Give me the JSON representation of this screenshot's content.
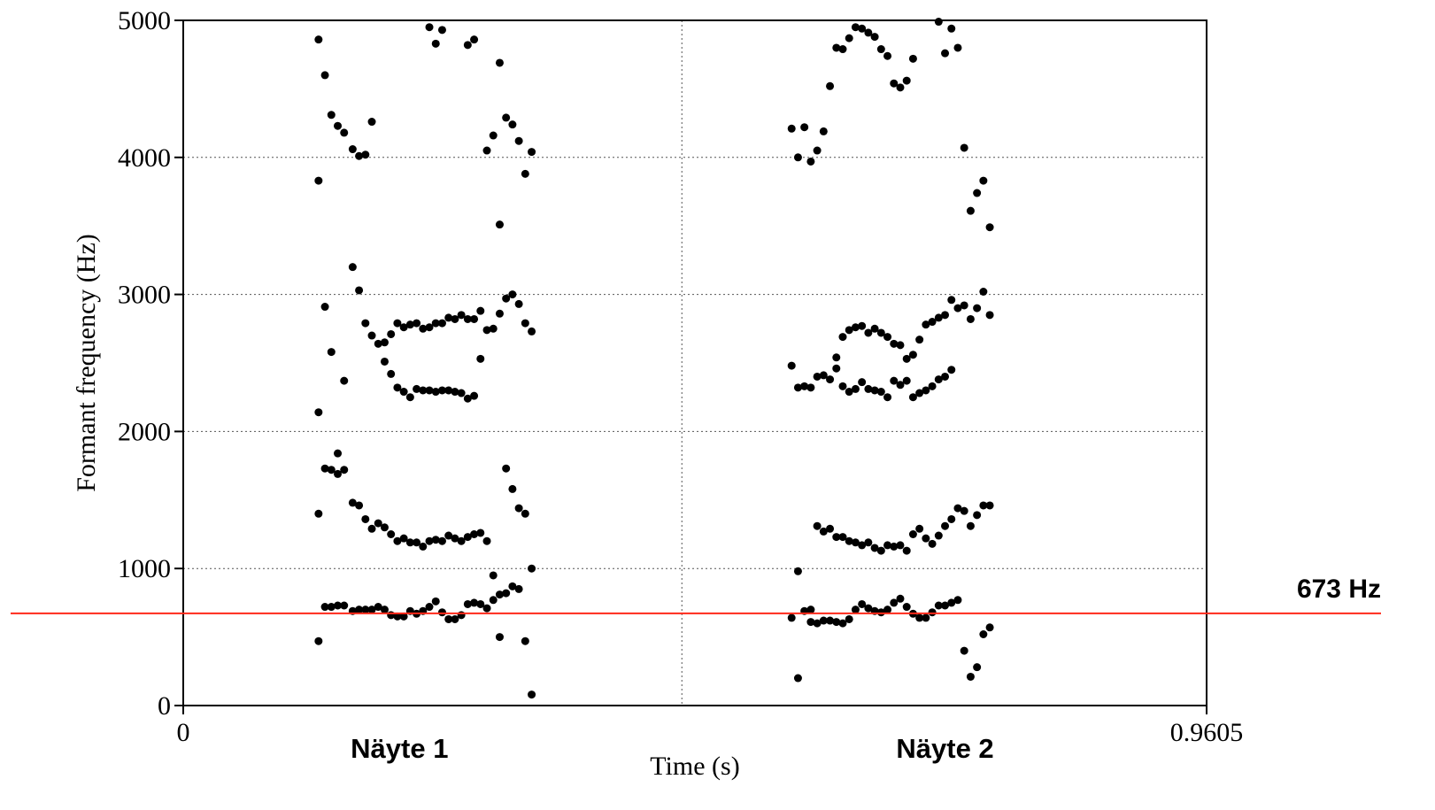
{
  "chart_data": {
    "type": "scatter",
    "xlabel": "Time (s)",
    "ylabel": "Formant frequency (Hz)",
    "xlim": [
      0,
      0.9605
    ],
    "ylim": [
      0,
      5000
    ],
    "x_tick_labels": [
      "0",
      "0.9605"
    ],
    "y_ticks": [
      0,
      1000,
      2000,
      3000,
      4000,
      5000
    ],
    "y_tick_labels": [
      "0",
      "1000",
      "2000",
      "3000",
      "4000",
      "5000"
    ],
    "grid": "horizontal dotted at y ticks; vertical dotted at sample boundary",
    "divider_x": 0.468,
    "sample_labels": [
      {
        "text": "Näyte 1",
        "x": 0.203
      },
      {
        "text": "Näyte 2",
        "x": 0.715
      }
    ],
    "reference_line": {
      "value": 673,
      "label": "673 Hz",
      "color": "#ff2a1a"
    },
    "point_color": "#000000",
    "series": [
      {
        "values": [
          [
            0.127,
            470
          ],
          [
            0.127,
            1400
          ],
          [
            0.127,
            2140
          ],
          [
            0.127,
            3830
          ],
          [
            0.127,
            4860
          ],
          [
            0.133,
            720
          ],
          [
            0.133,
            1730
          ],
          [
            0.133,
            2910
          ],
          [
            0.133,
            4600
          ],
          [
            0.139,
            720
          ],
          [
            0.139,
            1720
          ],
          [
            0.139,
            2580
          ],
          [
            0.139,
            4310
          ],
          [
            0.145,
            730
          ],
          [
            0.145,
            1690
          ],
          [
            0.145,
            1840
          ],
          [
            0.145,
            4230
          ],
          [
            0.151,
            730
          ],
          [
            0.151,
            1720
          ],
          [
            0.151,
            2370
          ],
          [
            0.151,
            4180
          ],
          [
            0.159,
            690
          ],
          [
            0.159,
            1480
          ],
          [
            0.159,
            3200
          ],
          [
            0.159,
            4060
          ],
          [
            0.165,
            700
          ],
          [
            0.165,
            1460
          ],
          [
            0.165,
            3030
          ],
          [
            0.165,
            4010
          ],
          [
            0.171,
            700
          ],
          [
            0.171,
            1360
          ],
          [
            0.171,
            2790
          ],
          [
            0.171,
            4020
          ],
          [
            0.177,
            700
          ],
          [
            0.177,
            1290
          ],
          [
            0.177,
            2700
          ],
          [
            0.177,
            4260
          ],
          [
            0.183,
            720
          ],
          [
            0.183,
            1330
          ],
          [
            0.183,
            2640
          ],
          [
            0.189,
            700
          ],
          [
            0.189,
            1300
          ],
          [
            0.189,
            2650
          ],
          [
            0.189,
            2510
          ],
          [
            0.195,
            660
          ],
          [
            0.195,
            1250
          ],
          [
            0.195,
            2710
          ],
          [
            0.195,
            2420
          ],
          [
            0.201,
            650
          ],
          [
            0.201,
            1200
          ],
          [
            0.201,
            2790
          ],
          [
            0.201,
            2320
          ],
          [
            0.207,
            650
          ],
          [
            0.207,
            1220
          ],
          [
            0.207,
            2760
          ],
          [
            0.207,
            2290
          ],
          [
            0.213,
            690
          ],
          [
            0.213,
            1190
          ],
          [
            0.213,
            2780
          ],
          [
            0.213,
            2250
          ],
          [
            0.219,
            670
          ],
          [
            0.219,
            1190
          ],
          [
            0.219,
            2790
          ],
          [
            0.219,
            2310
          ],
          [
            0.225,
            690
          ],
          [
            0.225,
            1160
          ],
          [
            0.225,
            2750
          ],
          [
            0.225,
            2300
          ],
          [
            0.231,
            720
          ],
          [
            0.231,
            1200
          ],
          [
            0.231,
            2760
          ],
          [
            0.231,
            2300
          ],
          [
            0.231,
            4950
          ],
          [
            0.237,
            760
          ],
          [
            0.237,
            1210
          ],
          [
            0.237,
            2790
          ],
          [
            0.237,
            2290
          ],
          [
            0.237,
            4830
          ],
          [
            0.243,
            680
          ],
          [
            0.243,
            1200
          ],
          [
            0.243,
            2790
          ],
          [
            0.243,
            2300
          ],
          [
            0.243,
            4930
          ],
          [
            0.249,
            630
          ],
          [
            0.249,
            1240
          ],
          [
            0.249,
            2830
          ],
          [
            0.249,
            2300
          ],
          [
            0.255,
            630
          ],
          [
            0.255,
            1220
          ],
          [
            0.255,
            2820
          ],
          [
            0.255,
            2290
          ],
          [
            0.261,
            660
          ],
          [
            0.261,
            1200
          ],
          [
            0.261,
            2850
          ],
          [
            0.261,
            2280
          ],
          [
            0.267,
            740
          ],
          [
            0.267,
            1230
          ],
          [
            0.267,
            2820
          ],
          [
            0.267,
            2240
          ],
          [
            0.267,
            4820
          ],
          [
            0.273,
            750
          ],
          [
            0.273,
            1250
          ],
          [
            0.273,
            2820
          ],
          [
            0.273,
            2260
          ],
          [
            0.273,
            4860
          ],
          [
            0.279,
            740
          ],
          [
            0.279,
            1260
          ],
          [
            0.279,
            2880
          ],
          [
            0.279,
            2530
          ],
          [
            0.285,
            710
          ],
          [
            0.285,
            1200
          ],
          [
            0.285,
            2740
          ],
          [
            0.285,
            4050
          ],
          [
            0.291,
            770
          ],
          [
            0.291,
            950
          ],
          [
            0.291,
            2750
          ],
          [
            0.291,
            4160
          ],
          [
            0.297,
            500
          ],
          [
            0.297,
            810
          ],
          [
            0.297,
            2860
          ],
          [
            0.297,
            3510
          ],
          [
            0.297,
            4690
          ],
          [
            0.303,
            820
          ],
          [
            0.303,
            1730
          ],
          [
            0.303,
            2970
          ],
          [
            0.303,
            4290
          ],
          [
            0.309,
            870
          ],
          [
            0.309,
            1580
          ],
          [
            0.309,
            3000
          ],
          [
            0.309,
            4240
          ],
          [
            0.315,
            850
          ],
          [
            0.315,
            1440
          ],
          [
            0.315,
            2930
          ],
          [
            0.315,
            4120
          ],
          [
            0.321,
            470
          ],
          [
            0.321,
            1400
          ],
          [
            0.321,
            2790
          ],
          [
            0.321,
            3880
          ],
          [
            0.327,
            80
          ],
          [
            0.327,
            1000
          ],
          [
            0.327,
            2730
          ],
          [
            0.327,
            4040
          ],
          [
            0.571,
            640
          ],
          [
            0.571,
            2480
          ],
          [
            0.571,
            4210
          ],
          [
            0.577,
            200
          ],
          [
            0.577,
            980
          ],
          [
            0.577,
            2320
          ],
          [
            0.577,
            4000
          ],
          [
            0.583,
            690
          ],
          [
            0.583,
            2330
          ],
          [
            0.583,
            4220
          ],
          [
            0.589,
            700
          ],
          [
            0.589,
            610
          ],
          [
            0.589,
            2320
          ],
          [
            0.589,
            3970
          ],
          [
            0.595,
            600
          ],
          [
            0.595,
            1310
          ],
          [
            0.595,
            2400
          ],
          [
            0.595,
            4050
          ],
          [
            0.601,
            620
          ],
          [
            0.601,
            1270
          ],
          [
            0.601,
            2410
          ],
          [
            0.601,
            4190
          ],
          [
            0.607,
            620
          ],
          [
            0.607,
            1290
          ],
          [
            0.607,
            2380
          ],
          [
            0.607,
            4520
          ],
          [
            0.613,
            610
          ],
          [
            0.613,
            1230
          ],
          [
            0.613,
            2460
          ],
          [
            0.613,
            2540
          ],
          [
            0.613,
            4800
          ],
          [
            0.619,
            600
          ],
          [
            0.619,
            1230
          ],
          [
            0.619,
            2690
          ],
          [
            0.619,
            2330
          ],
          [
            0.619,
            4790
          ],
          [
            0.625,
            630
          ],
          [
            0.625,
            1200
          ],
          [
            0.625,
            2740
          ],
          [
            0.625,
            2290
          ],
          [
            0.625,
            4870
          ],
          [
            0.631,
            700
          ],
          [
            0.631,
            1190
          ],
          [
            0.631,
            2760
          ],
          [
            0.631,
            2310
          ],
          [
            0.631,
            4950
          ],
          [
            0.637,
            740
          ],
          [
            0.637,
            1170
          ],
          [
            0.637,
            2770
          ],
          [
            0.637,
            2360
          ],
          [
            0.637,
            4940
          ],
          [
            0.643,
            710
          ],
          [
            0.643,
            1190
          ],
          [
            0.643,
            2720
          ],
          [
            0.643,
            2310
          ],
          [
            0.643,
            4910
          ],
          [
            0.649,
            690
          ],
          [
            0.649,
            1150
          ],
          [
            0.649,
            2750
          ],
          [
            0.649,
            2300
          ],
          [
            0.649,
            4880
          ],
          [
            0.655,
            680
          ],
          [
            0.655,
            1130
          ],
          [
            0.655,
            2720
          ],
          [
            0.655,
            2290
          ],
          [
            0.655,
            4790
          ],
          [
            0.661,
            700
          ],
          [
            0.661,
            1170
          ],
          [
            0.661,
            2690
          ],
          [
            0.661,
            2250
          ],
          [
            0.661,
            4740
          ],
          [
            0.667,
            750
          ],
          [
            0.667,
            1160
          ],
          [
            0.667,
            2640
          ],
          [
            0.667,
            2370
          ],
          [
            0.667,
            4540
          ],
          [
            0.673,
            780
          ],
          [
            0.673,
            1170
          ],
          [
            0.673,
            2630
          ],
          [
            0.673,
            2340
          ],
          [
            0.673,
            4510
          ],
          [
            0.679,
            720
          ],
          [
            0.679,
            1130
          ],
          [
            0.679,
            2530
          ],
          [
            0.679,
            2370
          ],
          [
            0.679,
            4560
          ],
          [
            0.685,
            670
          ],
          [
            0.685,
            1250
          ],
          [
            0.685,
            2560
          ],
          [
            0.685,
            2250
          ],
          [
            0.685,
            4720
          ],
          [
            0.691,
            640
          ],
          [
            0.691,
            1290
          ],
          [
            0.691,
            2670
          ],
          [
            0.691,
            2280
          ],
          [
            0.697,
            640
          ],
          [
            0.697,
            1220
          ],
          [
            0.697,
            2780
          ],
          [
            0.697,
            2300
          ],
          [
            0.703,
            680
          ],
          [
            0.703,
            1180
          ],
          [
            0.703,
            2800
          ],
          [
            0.703,
            2330
          ],
          [
            0.709,
            730
          ],
          [
            0.709,
            1240
          ],
          [
            0.709,
            2830
          ],
          [
            0.709,
            2380
          ],
          [
            0.709,
            4990
          ],
          [
            0.715,
            730
          ],
          [
            0.715,
            1310
          ],
          [
            0.715,
            2850
          ],
          [
            0.715,
            2400
          ],
          [
            0.715,
            4760
          ],
          [
            0.721,
            750
          ],
          [
            0.721,
            1360
          ],
          [
            0.721,
            2960
          ],
          [
            0.721,
            2450
          ],
          [
            0.721,
            4940
          ],
          [
            0.727,
            770
          ],
          [
            0.727,
            1440
          ],
          [
            0.727,
            2900
          ],
          [
            0.727,
            4800
          ],
          [
            0.733,
            400
          ],
          [
            0.733,
            1420
          ],
          [
            0.733,
            2920
          ],
          [
            0.733,
            4070
          ],
          [
            0.739,
            210
          ],
          [
            0.739,
            1310
          ],
          [
            0.739,
            2820
          ],
          [
            0.739,
            3610
          ],
          [
            0.745,
            280
          ],
          [
            0.745,
            1390
          ],
          [
            0.745,
            2900
          ],
          [
            0.745,
            3740
          ],
          [
            0.751,
            520
          ],
          [
            0.751,
            1460
          ],
          [
            0.751,
            3020
          ],
          [
            0.751,
            3830
          ],
          [
            0.757,
            570
          ],
          [
            0.757,
            1460
          ],
          [
            0.757,
            2850
          ],
          [
            0.757,
            3490
          ]
        ]
      }
    ]
  }
}
